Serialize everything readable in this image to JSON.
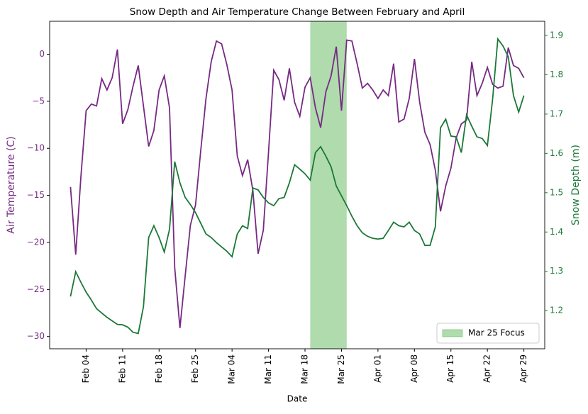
{
  "chart_data": {
    "type": "line",
    "title": "Snow Depth and Air Temperature Change Between February and April",
    "x_label": "Date",
    "y_label": "Air Temperature (C)",
    "y2_label": "Snow Depth (m)",
    "categories": [
      "Feb 01",
      "Feb 02",
      "Feb 03",
      "Feb 04",
      "Feb 05",
      "Feb 06",
      "Feb 07",
      "Feb 08",
      "Feb 09",
      "Feb 10",
      "Feb 11",
      "Feb 12",
      "Feb 13",
      "Feb 14",
      "Feb 15",
      "Feb 16",
      "Feb 17",
      "Feb 18",
      "Feb 19",
      "Feb 20",
      "Feb 21",
      "Feb 22",
      "Feb 23",
      "Feb 24",
      "Feb 25",
      "Feb 26",
      "Feb 27",
      "Feb 28",
      "Mar 01",
      "Mar 02",
      "Mar 03",
      "Mar 04",
      "Mar 05",
      "Mar 06",
      "Mar 07",
      "Mar 08",
      "Mar 09",
      "Mar 10",
      "Mar 11",
      "Mar 12",
      "Mar 13",
      "Mar 14",
      "Mar 15",
      "Mar 16",
      "Mar 17",
      "Mar 18",
      "Mar 19",
      "Mar 20",
      "Mar 21",
      "Mar 22",
      "Mar 23",
      "Mar 24",
      "Mar 25",
      "Mar 26",
      "Mar 27",
      "Mar 28",
      "Mar 29",
      "Mar 30",
      "Mar 31",
      "Apr 01",
      "Apr 02",
      "Apr 03",
      "Apr 04",
      "Apr 05",
      "Apr 06",
      "Apr 07",
      "Apr 08",
      "Apr 09",
      "Apr 10",
      "Apr 11",
      "Apr 12",
      "Apr 13",
      "Apr 14",
      "Apr 15",
      "Apr 16",
      "Apr 17",
      "Apr 18",
      "Apr 19",
      "Apr 20",
      "Apr 21",
      "Apr 22",
      "Apr 23",
      "Apr 24",
      "Apr 25",
      "Apr 26",
      "Apr 27",
      "Apr 28",
      "Apr 29"
    ],
    "xticks": [
      "Feb 04",
      "Feb 11",
      "Feb 18",
      "Feb 25",
      "Mar 04",
      "Mar 11",
      "Mar 18",
      "Mar 25",
      "Apr 01",
      "Apr 08",
      "Apr 15",
      "Apr 22",
      "Apr 29"
    ],
    "series": [
      {
        "name": "Air Temperature (C)",
        "color": "#762a83",
        "axis": "y",
        "values": [
          -14.1,
          -21.3,
          -13,
          -6,
          -5.3,
          -5.5,
          -2.6,
          -3.8,
          -2.5,
          0.5,
          -7.4,
          -5.9,
          -3.4,
          -1.2,
          -5.5,
          -9.8,
          -8.1,
          -3.8,
          -2.3,
          -5.7,
          -22.7,
          -29.1,
          -23.6,
          -18.2,
          -16,
          -10.2,
          -4.7,
          -0.8,
          1.4,
          1.1,
          -1.1,
          -3.8,
          -10.8,
          -12.9,
          -11.2,
          -14.5,
          -21.2,
          -18.7,
          -10.4,
          -1.7,
          -2.7,
          -4.9,
          -1.5,
          -5.1,
          -6.6,
          -3.5,
          -2.5,
          -5.7,
          -7.8,
          -4,
          -2.3,
          0.8,
          -6,
          1.5,
          1.4,
          -1,
          -3.6,
          -3.1,
          -3.8,
          -4.7,
          -3.8,
          -4.4,
          -1,
          -7.2,
          -6.9,
          -4.7,
          -0.5,
          -5.1,
          -8.3,
          -9.6,
          -12.3,
          -16.7,
          -14,
          -12.1,
          -8.9,
          -7.4,
          -7,
          -0.8,
          -4.4,
          -3.1,
          -1.4,
          -3.2,
          -3.6,
          -3.4,
          0.7,
          -1.2,
          -1.5,
          -2.5
        ]
      },
      {
        "name": "Snow Depth (m)",
        "color": "#1b7837",
        "axis": "y2",
        "values": [
          1.236,
          1.299,
          1.272,
          1.247,
          1.227,
          1.205,
          1.194,
          1.183,
          1.174,
          1.165,
          1.164,
          1.158,
          1.145,
          1.142,
          1.21,
          1.386,
          1.416,
          1.386,
          1.349,
          1.407,
          1.579,
          1.525,
          1.488,
          1.47,
          1.449,
          1.422,
          1.395,
          1.386,
          1.373,
          1.362,
          1.351,
          1.337,
          1.395,
          1.416,
          1.409,
          1.512,
          1.507,
          1.488,
          1.474,
          1.467,
          1.485,
          1.488,
          1.525,
          1.571,
          1.56,
          1.548,
          1.532,
          1.602,
          1.617,
          1.593,
          1.566,
          1.517,
          1.492,
          1.467,
          1.44,
          1.416,
          1.398,
          1.389,
          1.384,
          1.382,
          1.384,
          1.404,
          1.425,
          1.416,
          1.413,
          1.425,
          1.404,
          1.395,
          1.366,
          1.366,
          1.413,
          1.665,
          1.687,
          1.644,
          1.642,
          1.602,
          1.698,
          1.669,
          1.642,
          1.638,
          1.62,
          1.738,
          1.891,
          1.873,
          1.846,
          1.747,
          1.705,
          1.747
        ]
      }
    ],
    "ylim": [
      -31.3,
      3.5
    ],
    "yticks": [
      {
        "value": -30,
        "label": "−30"
      },
      {
        "value": -25,
        "label": "−25"
      },
      {
        "value": -20,
        "label": "−20"
      },
      {
        "value": -15,
        "label": "−15"
      },
      {
        "value": -10,
        "label": "−10"
      },
      {
        "value": -5,
        "label": "−5"
      },
      0
    ],
    "y2lim": [
      1.103,
      1.936
    ],
    "y2ticks": [
      1.2,
      1.3,
      1.4,
      1.5,
      1.6,
      1.7,
      1.8,
      1.9
    ],
    "highlight": {
      "start": "Mar 19",
      "end": "Mar 26",
      "label": "Mar 25 Focus",
      "color": "#4daf4a"
    },
    "legend": "lower right",
    "grid": false
  }
}
